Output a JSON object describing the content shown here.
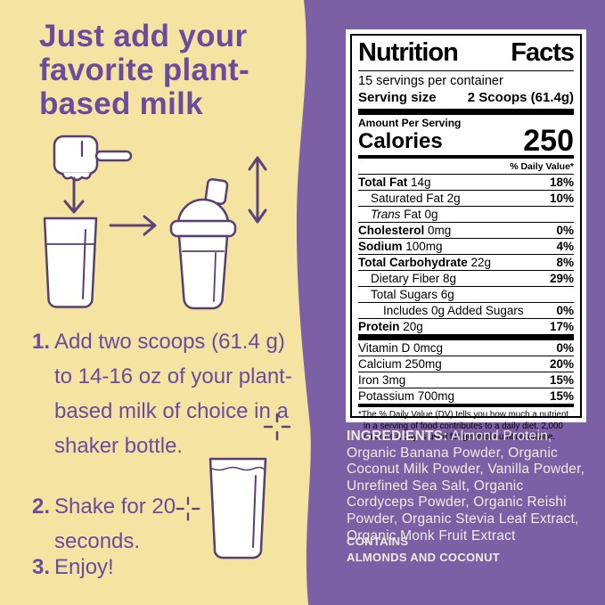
{
  "colors": {
    "cream": "#F5E3A1",
    "purple_background": "#7C60A5",
    "text_purple": "#6B4B9E",
    "icon_stroke": "#563F72",
    "arrow_stroke": "#5D4379",
    "label_black": "#000000",
    "label_white": "#FFFFFF",
    "ingredients_white": "#F0EAE0"
  },
  "icons": {
    "scoop": "scoop-icon",
    "arrow_down": "arrow-down-icon",
    "glass": "milk-glass-icon",
    "arrow_right": "arrow-right-icon",
    "shaker": "shaker-bottle-icon",
    "shake_motion": "shake-motion-arrow-icon",
    "sparkle": "sparkle-icon"
  },
  "left": {
    "title_lines": [
      "Just add your",
      "favorite plant-",
      "based milk"
    ],
    "steps": [
      {
        "num": "1.",
        "text": "Add two scoops (61.4 g) to 14-16 oz of your plant-based milk of choice in a shaker bottle."
      },
      {
        "num": "2.",
        "text": "Shake for 20 seconds."
      },
      {
        "num": "3.",
        "text": "Enjoy!"
      }
    ]
  },
  "label": {
    "title": "Nutrition Facts",
    "servings_per_container": "15 servings per container",
    "serving_size_label": "Serving size",
    "serving_size_value": "2 Scoops (61.4g)",
    "amount_per_serving": "Amount Per Serving",
    "calories_label": "Calories",
    "calories_value": "250",
    "daily_value_header": "% Daily Value*",
    "rows": [
      {
        "name": "Total Fat",
        "amount": "14g",
        "dv": "18%",
        "bold": true,
        "indent": 0
      },
      {
        "name": "Saturated Fat",
        "amount": "2g",
        "dv": "10%",
        "bold": false,
        "indent": 1
      },
      {
        "name": "Trans Fat",
        "amount": "0g",
        "dv": "",
        "bold": false,
        "indent": 1,
        "italic_prefix": true
      },
      {
        "name": "Cholesterol",
        "amount": "0mg",
        "dv": "0%",
        "bold": true,
        "indent": 0
      },
      {
        "name": "Sodium",
        "amount": "100mg",
        "dv": "4%",
        "bold": true,
        "indent": 0
      },
      {
        "name": "Total Carbohydrate",
        "amount": "22g",
        "dv": "8%",
        "bold": true,
        "indent": 0
      },
      {
        "name": "Dietary Fiber",
        "amount": "8g",
        "dv": "29%",
        "bold": false,
        "indent": 1
      },
      {
        "name": "Total Sugars",
        "amount": "6g",
        "dv": "",
        "bold": false,
        "indent": 1
      },
      {
        "name": "Includes 0g Added Sugars",
        "amount": "",
        "dv": "0%",
        "bold": false,
        "indent": 2
      },
      {
        "name": "Protein",
        "amount": "20g",
        "dv": "17%",
        "bold": true,
        "indent": 0
      }
    ],
    "vitamins": [
      {
        "name": "Vitamin D",
        "amount": "0mcg",
        "dv": "0%"
      },
      {
        "name": "Calcium",
        "amount": "250mg",
        "dv": "20%"
      },
      {
        "name": "Iron",
        "amount": "3mg",
        "dv": "15%"
      },
      {
        "name": "Potassium",
        "amount": "700mg",
        "dv": "15%"
      }
    ],
    "footnote": "*The % Daily Value (DV) tells you how much a nutrient in a serving of food contributes to a daily diet. 2,000 calories a day is used for general nutrition advice."
  },
  "right": {
    "ingredients_label": "INGREDIENTS:",
    "ingredients_text": "Almond Protein, Organic Banana Powder, Organic Coconut Milk Powder, Vanilla Powder, Unrefined Sea Salt, Organic Cordyceps Powder, Organic Reishi Powder, Organic Stevia Leaf Extract, Organic Monk Fruit Extract",
    "contains_label": "CONTAINS",
    "contains_text": "ALMONDS AND COCONUT"
  }
}
